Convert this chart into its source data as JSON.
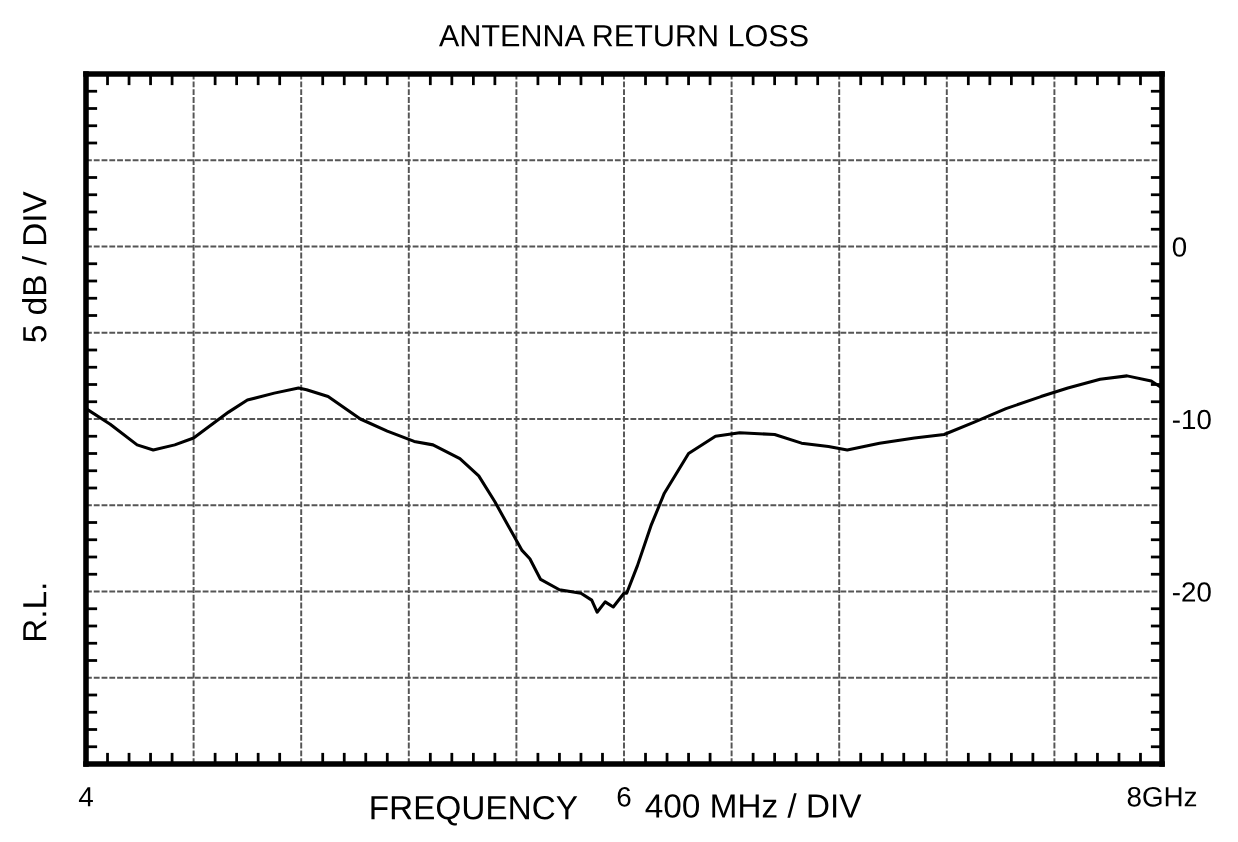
{
  "chart_data": {
    "type": "line",
    "title": "ANTENNA RETURN LOSS",
    "xlabel": "FREQUENCY",
    "ylabel": "5 dB / DIV",
    "annotations": [
      "R.L.",
      "400 MHz / DIV"
    ],
    "series": [
      {
        "color": "#000000",
        "x": [
          4.0,
          4.09,
          4.19,
          4.25,
          4.33,
          4.4,
          4.53,
          4.6,
          4.7,
          4.79,
          4.82,
          4.9,
          5.02,
          5.12,
          5.22,
          5.29,
          5.39,
          5.46,
          5.52,
          5.57,
          5.62,
          5.65,
          5.69,
          5.76,
          5.84,
          5.88,
          5.9,
          5.93,
          5.96,
          6.0,
          6.01,
          6.05,
          6.1,
          6.15,
          6.24,
          6.34,
          6.43,
          6.56,
          6.66,
          6.76,
          6.83,
          6.95,
          7.08,
          7.19,
          7.3,
          7.42,
          7.55,
          7.65,
          7.77,
          7.87,
          7.96,
          8.0
        ],
        "values": [
          -9.4,
          -10.3,
          -11.5,
          -11.8,
          -11.5,
          -11.1,
          -9.6,
          -8.9,
          -8.5,
          -8.2,
          -8.3,
          -8.7,
          -10.0,
          -10.7,
          -11.3,
          -11.5,
          -12.3,
          -13.3,
          -14.8,
          -16.2,
          -17.6,
          -18.1,
          -19.3,
          -19.9,
          -20.1,
          -20.5,
          -21.2,
          -20.6,
          -20.9,
          -20.1,
          -20.1,
          -18.5,
          -16.2,
          -14.3,
          -12.0,
          -11.0,
          -10.8,
          -10.9,
          -11.4,
          -11.6,
          -11.8,
          -11.4,
          -11.1,
          -10.9,
          -10.2,
          -9.4,
          -8.7,
          -8.2,
          -7.7,
          -7.5,
          -7.8,
          -8.2
        ]
      }
    ],
    "xlim": [
      4,
      8
    ],
    "ylim": [
      -30,
      10
    ],
    "xticks": [
      4,
      {
        "value": 4.4,
        "label": null
      },
      {
        "value": 4.8,
        "label": null
      },
      {
        "value": 5.2,
        "label": null
      },
      {
        "value": 5.6,
        "label": null
      },
      6,
      {
        "value": 6.4,
        "label": null
      },
      {
        "value": 6.8,
        "label": null
      },
      {
        "value": 7.2,
        "label": null
      },
      {
        "value": 7.6,
        "label": null
      },
      {
        "value": 8,
        "label": "8GHz"
      }
    ],
    "yticks": [
      {
        "value": -30,
        "label": null
      },
      {
        "value": -25,
        "label": null
      },
      -20,
      {
        "value": -15,
        "label": null
      },
      -10,
      {
        "value": -5,
        "label": null
      },
      0,
      {
        "value": 5,
        "label": null
      },
      {
        "value": 10,
        "label": null
      }
    ],
    "grid": true,
    "legend": false,
    "marker": "none",
    "line_style": "solid"
  }
}
